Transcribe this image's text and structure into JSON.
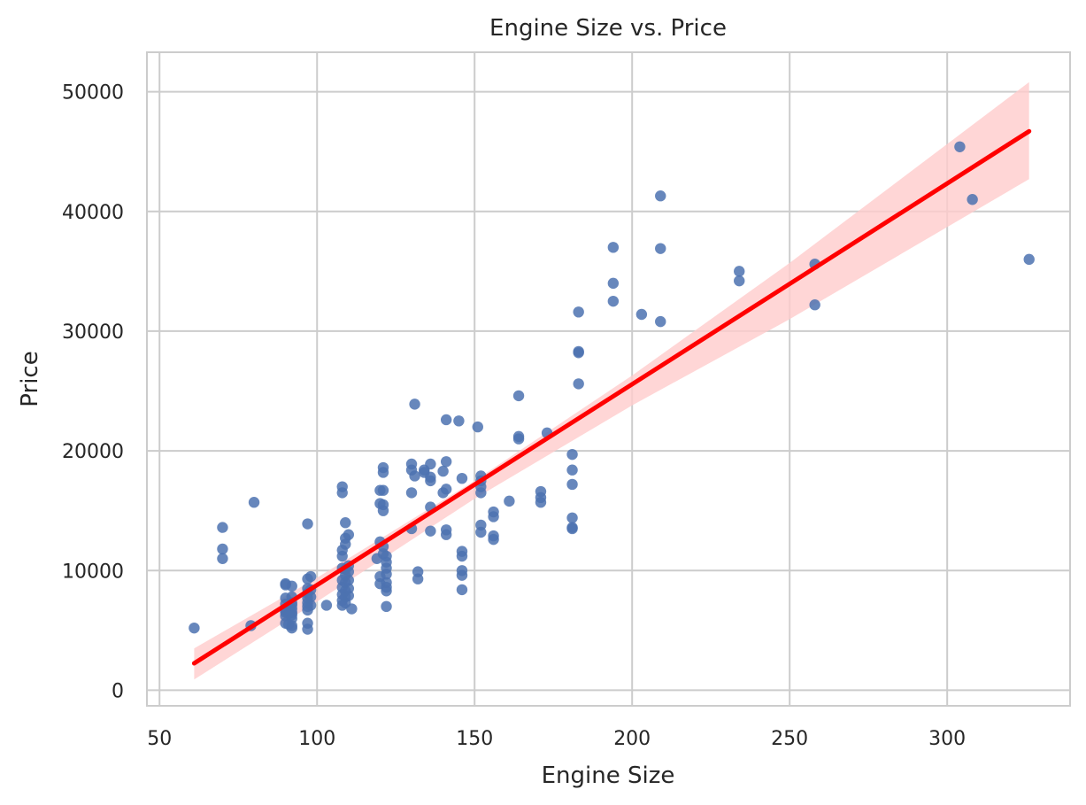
{
  "chart_data": {
    "type": "scatter",
    "title": "Engine Size vs. Price",
    "xlabel": "Engine Size",
    "ylabel": "Price",
    "xlim": [
      46,
      339
    ],
    "ylim": [
      -1300,
      53300
    ],
    "xticks": [
      50,
      100,
      150,
      200,
      250,
      300
    ],
    "yticks": [
      0,
      10000,
      20000,
      30000,
      40000,
      50000
    ],
    "grid": true,
    "point_color": "#4c72b0",
    "line_color": "#ff0000",
    "band_color": "#ffcccc",
    "regression": {
      "x": [
        61,
        326
      ],
      "y": [
        2250,
        46700
      ]
    },
    "confidence_band": {
      "x": [
        61,
        100,
        150,
        200,
        250,
        326
      ],
      "lower": [
        900,
        7400,
        16000,
        23800,
        31000,
        42700
      ],
      "upper": [
        3500,
        9400,
        17500,
        26300,
        35700,
        50800
      ]
    },
    "points": [
      [
        61,
        5200
      ],
      [
        70,
        13600
      ],
      [
        70,
        11800
      ],
      [
        70,
        11000
      ],
      [
        79,
        5400
      ],
      [
        80,
        15700
      ],
      [
        90,
        8900
      ],
      [
        90,
        8800
      ],
      [
        90,
        7700
      ],
      [
        90,
        7200
      ],
      [
        90,
        6700
      ],
      [
        90,
        6500
      ],
      [
        90,
        6200
      ],
      [
        90,
        5600
      ],
      [
        91,
        5500
      ],
      [
        91,
        6400
      ],
      [
        92,
        6300
      ],
      [
        92,
        6800
      ],
      [
        92,
        7300
      ],
      [
        92,
        7800
      ],
      [
        92,
        8700
      ],
      [
        92,
        5200
      ],
      [
        92,
        5400
      ],
      [
        92,
        6000
      ],
      [
        92,
        6500
      ],
      [
        92,
        7100
      ],
      [
        97,
        5100
      ],
      [
        97,
        5600
      ],
      [
        97,
        6700
      ],
      [
        97,
        7000
      ],
      [
        97,
        7300
      ],
      [
        97,
        7700
      ],
      [
        97,
        8100
      ],
      [
        97,
        8500
      ],
      [
        97,
        9300
      ],
      [
        97,
        13900
      ],
      [
        98,
        7100
      ],
      [
        98,
        7800
      ],
      [
        98,
        8400
      ],
      [
        98,
        9500
      ],
      [
        103,
        7100
      ],
      [
        108,
        7100
      ],
      [
        108,
        7500
      ],
      [
        108,
        8000
      ],
      [
        108,
        8600
      ],
      [
        108,
        9200
      ],
      [
        108,
        10200
      ],
      [
        108,
        11200
      ],
      [
        108,
        11700
      ],
      [
        108,
        16500
      ],
      [
        108,
        17000
      ],
      [
        109,
        7300
      ],
      [
        109,
        7800
      ],
      [
        109,
        8300
      ],
      [
        109,
        9000
      ],
      [
        109,
        9600
      ],
      [
        109,
        10100
      ],
      [
        109,
        12200
      ],
      [
        109,
        12700
      ],
      [
        109,
        14000
      ],
      [
        110,
        7900
      ],
      [
        110,
        8500
      ],
      [
        110,
        9200
      ],
      [
        110,
        9900
      ],
      [
        110,
        10400
      ],
      [
        110,
        13000
      ],
      [
        111,
        6800
      ],
      [
        119,
        11000
      ],
      [
        120,
        8900
      ],
      [
        120,
        9500
      ],
      [
        120,
        12400
      ],
      [
        120,
        15600
      ],
      [
        120,
        16700
      ],
      [
        121,
        11400
      ],
      [
        121,
        12000
      ],
      [
        121,
        15000
      ],
      [
        121,
        15500
      ],
      [
        121,
        16700
      ],
      [
        121,
        18200
      ],
      [
        121,
        18600
      ],
      [
        122,
        7000
      ],
      [
        122,
        8300
      ],
      [
        122,
        8600
      ],
      [
        122,
        9000
      ],
      [
        122,
        9700
      ],
      [
        122,
        10200
      ],
      [
        122,
        10700
      ],
      [
        122,
        11200
      ],
      [
        130,
        13500
      ],
      [
        130,
        16500
      ],
      [
        130,
        18400
      ],
      [
        130,
        18900
      ],
      [
        131,
        17900
      ],
      [
        131,
        23900
      ],
      [
        132,
        9300
      ],
      [
        132,
        9900
      ],
      [
        134,
        18200
      ],
      [
        134,
        18400
      ],
      [
        136,
        13300
      ],
      [
        136,
        15300
      ],
      [
        136,
        17500
      ],
      [
        136,
        17800
      ],
      [
        136,
        18900
      ],
      [
        140,
        16500
      ],
      [
        140,
        18300
      ],
      [
        141,
        13000
      ],
      [
        141,
        13400
      ],
      [
        141,
        16800
      ],
      [
        141,
        19100
      ],
      [
        141,
        22600
      ],
      [
        145,
        22500
      ],
      [
        146,
        8400
      ],
      [
        146,
        9600
      ],
      [
        146,
        10000
      ],
      [
        146,
        11200
      ],
      [
        146,
        11600
      ],
      [
        146,
        17700
      ],
      [
        151,
        22000
      ],
      [
        152,
        13200
      ],
      [
        152,
        13800
      ],
      [
        152,
        16500
      ],
      [
        152,
        17000
      ],
      [
        152,
        17500
      ],
      [
        152,
        17900
      ],
      [
        156,
        12600
      ],
      [
        156,
        12900
      ],
      [
        156,
        14500
      ],
      [
        156,
        14900
      ],
      [
        161,
        15800
      ],
      [
        164,
        21000
      ],
      [
        164,
        21200
      ],
      [
        164,
        24600
      ],
      [
        171,
        15700
      ],
      [
        171,
        16100
      ],
      [
        171,
        16600
      ],
      [
        173,
        21500
      ],
      [
        181,
        13500
      ],
      [
        181,
        13600
      ],
      [
        181,
        14400
      ],
      [
        181,
        17200
      ],
      [
        181,
        18400
      ],
      [
        181,
        19700
      ],
      [
        183,
        25600
      ],
      [
        183,
        28200
      ],
      [
        183,
        28300
      ],
      [
        183,
        31600
      ],
      [
        194,
        32500
      ],
      [
        194,
        34000
      ],
      [
        194,
        37000
      ],
      [
        203,
        31400
      ],
      [
        209,
        30800
      ],
      [
        209,
        36900
      ],
      [
        209,
        41300
      ],
      [
        234,
        34200
      ],
      [
        234,
        35000
      ],
      [
        258,
        32200
      ],
      [
        258,
        35600
      ],
      [
        304,
        45400
      ],
      [
        308,
        41000
      ],
      [
        326,
        36000
      ]
    ]
  }
}
